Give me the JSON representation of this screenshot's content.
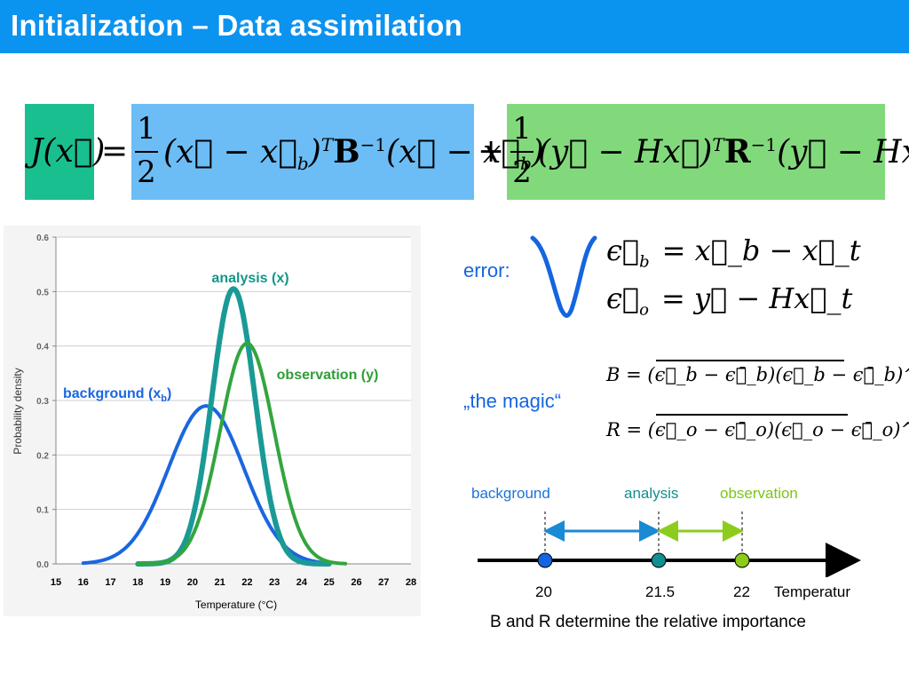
{
  "slide": {
    "title": "Initialization – Data assimilation"
  },
  "equation": {
    "lhs": "J(x⃗)",
    "equals": "=",
    "frac_num": "1",
    "frac_den": "2",
    "background_term": "(x⃗ − x⃗",
    "background_sub": "b",
    "background_term2": ")",
    "background_mid": "B",
    "background_tail": "(x⃗ − x⃗",
    "background_tail_end": ")",
    "plus": "+",
    "obs_term": "(y⃗ − Hx⃗)",
    "obs_mid": "R",
    "obs_tail": "(y⃗ − Hx⃗)",
    "sup_T": "T",
    "sup_inv": "−1",
    "colors": {
      "lhs_box": "#1abf8f",
      "background_box": "#6cbdf5",
      "obs_box": "#82d97c"
    }
  },
  "error_section": {
    "label": "error:",
    "eb_lhs": "ϵ⃗",
    "eb_sub": "b",
    "eb_rhs": "= x⃗_b − x⃗_t",
    "eo_lhs": "ϵ⃗",
    "eo_sub": "o",
    "eo_rhs": "= y⃗ − Hx⃗_t",
    "brace_color": "#1565e0"
  },
  "magic_section": {
    "label": "„the magic“",
    "B_eq": "B = (ϵ⃗_b − ϵ⃗̄_b)(ϵ⃗_b − ϵ⃗̄_b)^T",
    "R_eq": "R = (ϵ⃗_o − ϵ⃗̄_o)(ϵ⃗_o − ϵ⃗̄_o)^T",
    "B_label": "B",
    "R_label": "R"
  },
  "number_line": {
    "labels": {
      "background": "background",
      "analysis": "analysis",
      "observation": "observation"
    },
    "ticks": [
      "20",
      "21.5",
      "22"
    ],
    "axis_label": "Temperatur",
    "caption": "B and R determine the relative importance",
    "colors": {
      "background": "#1565e0",
      "analysis": "#138f8f",
      "observation": "#7cc41c",
      "arrow_blue": "#1a8ad4",
      "arrow_green": "#8ccc1c"
    }
  },
  "chart_data": {
    "type": "line",
    "title": "",
    "xlabel": "Temperature (°C)",
    "ylabel": "Probability density",
    "xlim": [
      15,
      28
    ],
    "ylim": [
      0,
      0.6
    ],
    "x_ticks": [
      "15",
      "16",
      "17",
      "18",
      "19",
      "20",
      "21",
      "22",
      "23",
      "24",
      "25",
      "26",
      "27",
      "28"
    ],
    "y_ticks": [
      "0.0",
      "0.1",
      "0.2",
      "0.3",
      "0.4",
      "0.5",
      "0.6"
    ],
    "series": [
      {
        "name": "background (x",
        "name_sub": "b",
        "name_end": ")",
        "color": "#1a66e0",
        "mean": 20.5,
        "peak": 0.29,
        "sigma": 1.38
      },
      {
        "name": "analysis (x)",
        "color": "#1a9a96",
        "mean": 21.5,
        "peak": 0.505,
        "sigma": 0.79
      },
      {
        "name": "observation (y)",
        "color": "#33a53f",
        "mean": 22.0,
        "peak": 0.405,
        "sigma": 0.985
      }
    ],
    "label_colors": {
      "background": "#1a66e0",
      "analysis": "#14958a",
      "observation": "#2e9e35"
    }
  }
}
